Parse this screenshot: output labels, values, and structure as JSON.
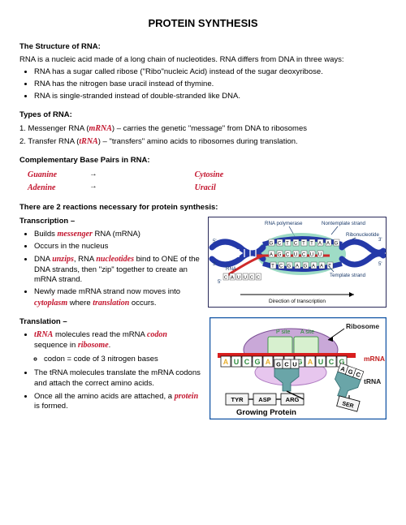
{
  "title": "PROTEIN SYNTHESIS",
  "rna_head": "The Structure of RNA:",
  "rna_line": "RNA is a nucleic acid made of a long chain of nucleotides. RNA differs from DNA in three ways:",
  "rna_bullets": [
    "RNA has a sugar called ribose (\"Ribo\"nucleic Acid) instead of the sugar deoxyribose.",
    "RNA has the nitrogen base uracil instead of thymine.",
    "RNA is single-stranded instead of double-stranded like DNA."
  ],
  "types_head": "Types of RNA:",
  "types_lines": {
    "line1a": "1. Messenger RNA (",
    "ans1": "mRNA",
    "line1b": ") – carries the genetic \"message\" from DNA to ribosomes",
    "line2a": "2. Transfer RNA (",
    "ans2": "tRNA",
    "line2b": ") – \"transfers\" amino acids to ribosomes during translation."
  },
  "pairs_head": "Complementary Base Pairs in RNA:",
  "pair1": {
    "l": "Guanine",
    "sep": " → ",
    "r": "Cytosine"
  },
  "pair2": {
    "l": "Adenine",
    "sep": " → ",
    "r": "Uracil"
  },
  "tworx_head": "There are 2 reactions necessary for protein synthesis:",
  "transcription_label": "Transcription –",
  "transcription_bullets": {
    "b1a": "Builds ",
    "b1ans": "messenger",
    "b1b": " RNA (mRNA)",
    "b2": "Occurs in the nucleus",
    "b3a": "DNA ",
    "b3ans": "unzips",
    "b3b": ", RNA ",
    "b3ans2": "nucleotides",
    "b3c": " bind to ONE of the DNA strands, then \"zip\" together to create an mRNA strand.",
    "b4a": "Newly made mRNA strand now moves into ",
    "b4ans": "cytoplasm",
    "b4b": " where ",
    "b4ans2": "translation",
    "b4c": " occurs."
  },
  "translation_label": "Translation –",
  "translation_bullets": {
    "b1a": "",
    "b1ans": "tRNA",
    "b1b": " molecules read the mRNA ",
    "b1ans2": "codon",
    "b1c": " sequence in ",
    "b1ans3": "ribosome",
    "b1d": ".",
    "sub1": "codon = code of 3 nitrogen bases",
    "b2": "The tRNA molecules translate the mRNA codons and attach the correct amino acids.",
    "b3a": "Once all the amino acids are attached, a ",
    "b3ans": "protein",
    "b3b": " is formed."
  },
  "fig1": {
    "labels": {
      "polymerase": "RNA polymerase",
      "nontemplate": "Nontemplate strand",
      "ribonuc": "Ribonucleotide",
      "template": "Template strand",
      "rna": "RNA",
      "direction": "Direction of transcription"
    },
    "seq_top": [
      "G",
      "C",
      "T",
      "C",
      "T",
      "T",
      "A",
      "A",
      "G"
    ],
    "seq_mid": [
      "A",
      "G",
      "C",
      "U",
      "C",
      "U",
      "U"
    ],
    "seq_bot": [
      "T",
      "C",
      "G",
      "A",
      "G",
      "A",
      "A",
      "T"
    ],
    "rna_seq": [
      "C",
      "A",
      "U",
      "U",
      "C",
      "C"
    ],
    "colors": {
      "border": "#2a2a5a",
      "dna_strand": "#2439a8",
      "bubble": "#7fd0b3",
      "rna": "#cf2a2a",
      "text": "#1a3a6a"
    }
  },
  "fig2": {
    "labels": {
      "psite": "P site",
      "asite": "A site",
      "ribosome": "Ribosome",
      "mrna": "mRNA",
      "trna": "tRNA",
      "grow": "Growing Protein"
    },
    "mrna_seq": [
      "A",
      "U",
      "C",
      "G",
      "A",
      "U",
      "C",
      "G",
      "A",
      "U",
      "C",
      "G"
    ],
    "mrna_colors": [
      "#e8b030",
      "#2e8b3d",
      "#2e8b3d",
      "#2e8b3d",
      "#e8b030",
      "#2e8b3d",
      "#2e8b3d",
      "#2e8b3d",
      "#e8b030",
      "#2e8b3d",
      "#2e8b3d",
      "#2e8b3d"
    ],
    "anticodon": [
      "G",
      "C",
      "U"
    ],
    "anticodon2": [
      "A",
      "G",
      "C"
    ],
    "aminos": [
      "TYR",
      "ASP",
      "ARG"
    ],
    "amino_floating": "SER",
    "colors": {
      "border": "#1255a5",
      "ribosome_back": "#c9a8d8",
      "ribosome_front": "#e7c6ee",
      "site_fill": "#d7f0cf",
      "mrna_bar": "#d81e1e",
      "trna_body": "#6aa5a8",
      "amino_box": "#f4f4f4",
      "text": "#202020",
      "label_red": "#c21e1e",
      "label_green": "#1f8a2a"
    }
  }
}
